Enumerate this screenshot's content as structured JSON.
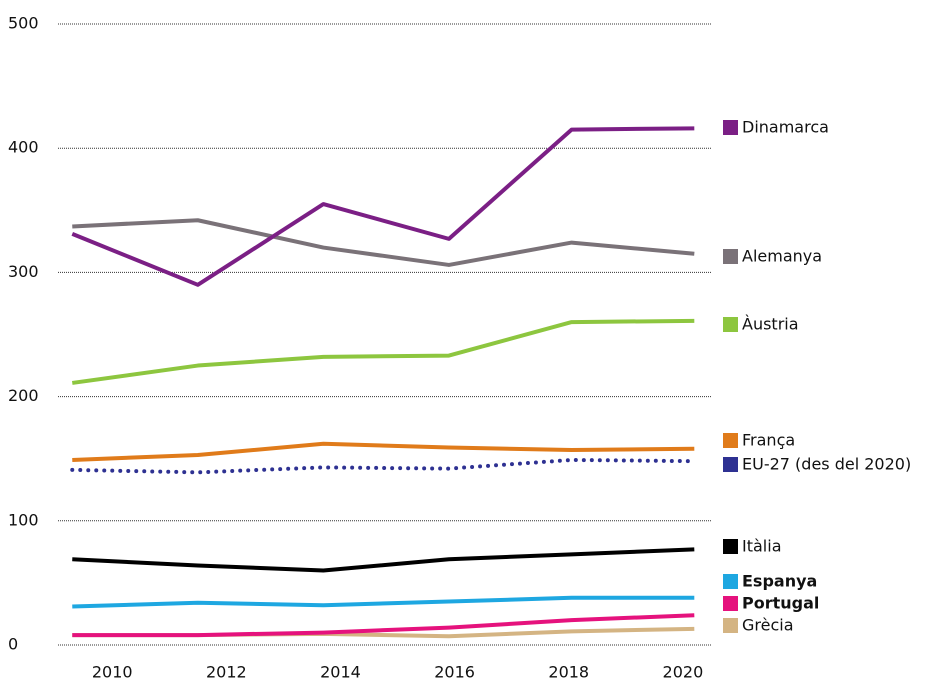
{
  "chart_data": {
    "type": "line",
    "x": [
      2009.3,
      2011.5,
      2013.7,
      2015.9,
      2018.05,
      2020.2
    ],
    "xlim": [
      2009.05,
      2020.51
    ],
    "xticks": [
      2010,
      2012,
      2014,
      2016,
      2018,
      2020
    ],
    "ylim": [
      0,
      500
    ],
    "yticks": [
      0,
      100,
      200,
      300,
      400,
      500
    ],
    "grid": true,
    "series": [
      {
        "name": "Dinamarca",
        "color": "#7b1f85",
        "values": [
          331,
          290,
          355,
          327,
          415,
          416
        ]
      },
      {
        "name": "Alemanya",
        "color": "#7a7278",
        "values": [
          337,
          342,
          320,
          306,
          324,
          315
        ]
      },
      {
        "name": "Àustria",
        "color": "#8dc63f",
        "values": [
          211,
          225,
          232,
          233,
          260,
          261
        ]
      },
      {
        "name": "França",
        "color": "#e07b1a",
        "values": [
          149,
          153,
          162,
          159,
          157,
          158
        ]
      },
      {
        "name": "EU-27 (des del 2020)",
        "color": "#2e3192",
        "style": "dotted",
        "values": [
          141,
          139,
          143,
          142,
          149,
          148
        ]
      },
      {
        "name": "Itàlia",
        "color": "#000000",
        "values": [
          69,
          64,
          60,
          69,
          73,
          77
        ]
      },
      {
        "name": "Espanya",
        "color": "#1ea7e1",
        "bold": true,
        "values": [
          31,
          34,
          32,
          35,
          38,
          38
        ]
      },
      {
        "name": "Portugal",
        "color": "#e5127d",
        "bold": true,
        "values": [
          8,
          8,
          10,
          14,
          20,
          24
        ]
      },
      {
        "name": "Grècia",
        "color": "#d4b483",
        "values": [
          8,
          8,
          9,
          7,
          11,
          13
        ]
      }
    ]
  }
}
